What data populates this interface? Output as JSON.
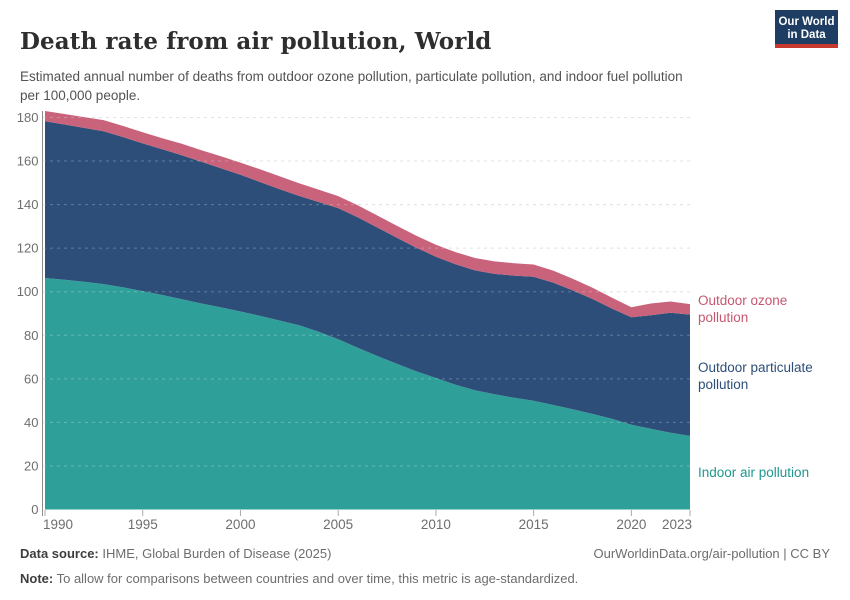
{
  "header": {
    "title": "Death rate from air pollution, World",
    "subtitle": "Estimated annual number of deaths from outdoor ozone pollution, particulate pollution, and indoor fuel pollution per 100,000 people.",
    "logo": {
      "line1": "Our World",
      "line2": "in Data",
      "bg_color": "#1d3d63",
      "accent_color": "#c7382f"
    }
  },
  "chart_data": {
    "type": "area",
    "stacked": true,
    "title": "Death rate from air pollution, World",
    "xlabel": "",
    "ylabel": "",
    "ylim": [
      0,
      185
    ],
    "grid": "dashed",
    "legend_position": "right-of-plot",
    "x": [
      1990,
      1991,
      1992,
      1993,
      1994,
      1995,
      1996,
      1997,
      1998,
      1999,
      2000,
      2001,
      2002,
      2003,
      2004,
      2005,
      2006,
      2007,
      2008,
      2009,
      2010,
      2011,
      2012,
      2013,
      2014,
      2015,
      2016,
      2017,
      2018,
      2019,
      2020,
      2021,
      2022,
      2023
    ],
    "xticks": [
      1990,
      1995,
      2000,
      2005,
      2010,
      2015,
      2020,
      2023
    ],
    "yticks": [
      0,
      20,
      40,
      60,
      80,
      100,
      120,
      140,
      160,
      180
    ],
    "series": [
      {
        "name": "Indoor air pollution",
        "color": "#2FA099",
        "label_color": "#1F978F",
        "values": [
          106.3,
          105.5,
          104.6,
          103.5,
          102.0,
          100.3,
          98.5,
          96.5,
          94.6,
          92.8,
          90.9,
          88.9,
          86.8,
          84.6,
          81.6,
          78.2,
          74.3,
          70.5,
          66.9,
          63.4,
          60.4,
          57.3,
          54.8,
          52.9,
          51.3,
          49.9,
          48.0,
          46.0,
          43.9,
          41.7,
          38.9,
          37.1,
          35.2,
          33.8
        ]
      },
      {
        "name": "Outdoor particulate pollution",
        "color": "#2D4E79",
        "label_color": "#2D4E79",
        "values": [
          72.0,
          71.3,
          70.6,
          70.2,
          69.0,
          67.8,
          66.9,
          66.2,
          65.1,
          63.9,
          62.8,
          61.5,
          60.3,
          59.4,
          59.6,
          60.2,
          59.9,
          59.0,
          57.9,
          56.8,
          55.7,
          55.3,
          55.0,
          55.3,
          56.1,
          57.0,
          56.2,
          54.6,
          52.8,
          50.6,
          49.4,
          52.1,
          55.1,
          55.7
        ]
      },
      {
        "name": "Outdoor ozone pollution",
        "color": "#C9637B",
        "label_color": "#C75670",
        "values": [
          4.7,
          4.8,
          5.0,
          5.1,
          5.1,
          5.1,
          5.1,
          5.2,
          5.3,
          5.5,
          5.6,
          5.8,
          5.9,
          5.8,
          5.7,
          5.5,
          5.5,
          5.5,
          5.5,
          5.5,
          5.5,
          5.6,
          5.7,
          5.7,
          5.7,
          5.6,
          5.5,
          5.4,
          5.2,
          5.0,
          4.6,
          5.4,
          5.2,
          4.8
        ]
      }
    ],
    "axis_text_color": "#6e6e6e"
  },
  "footer": {
    "data_source_label": "Data source:",
    "data_source_value": " IHME, Global Burden of Disease (2025)",
    "link": "OurWorldinData.org/air-pollution | CC BY",
    "note_label": "Note:",
    "note_value": " To allow for comparisons between countries and over time, this metric is age-standardized."
  }
}
